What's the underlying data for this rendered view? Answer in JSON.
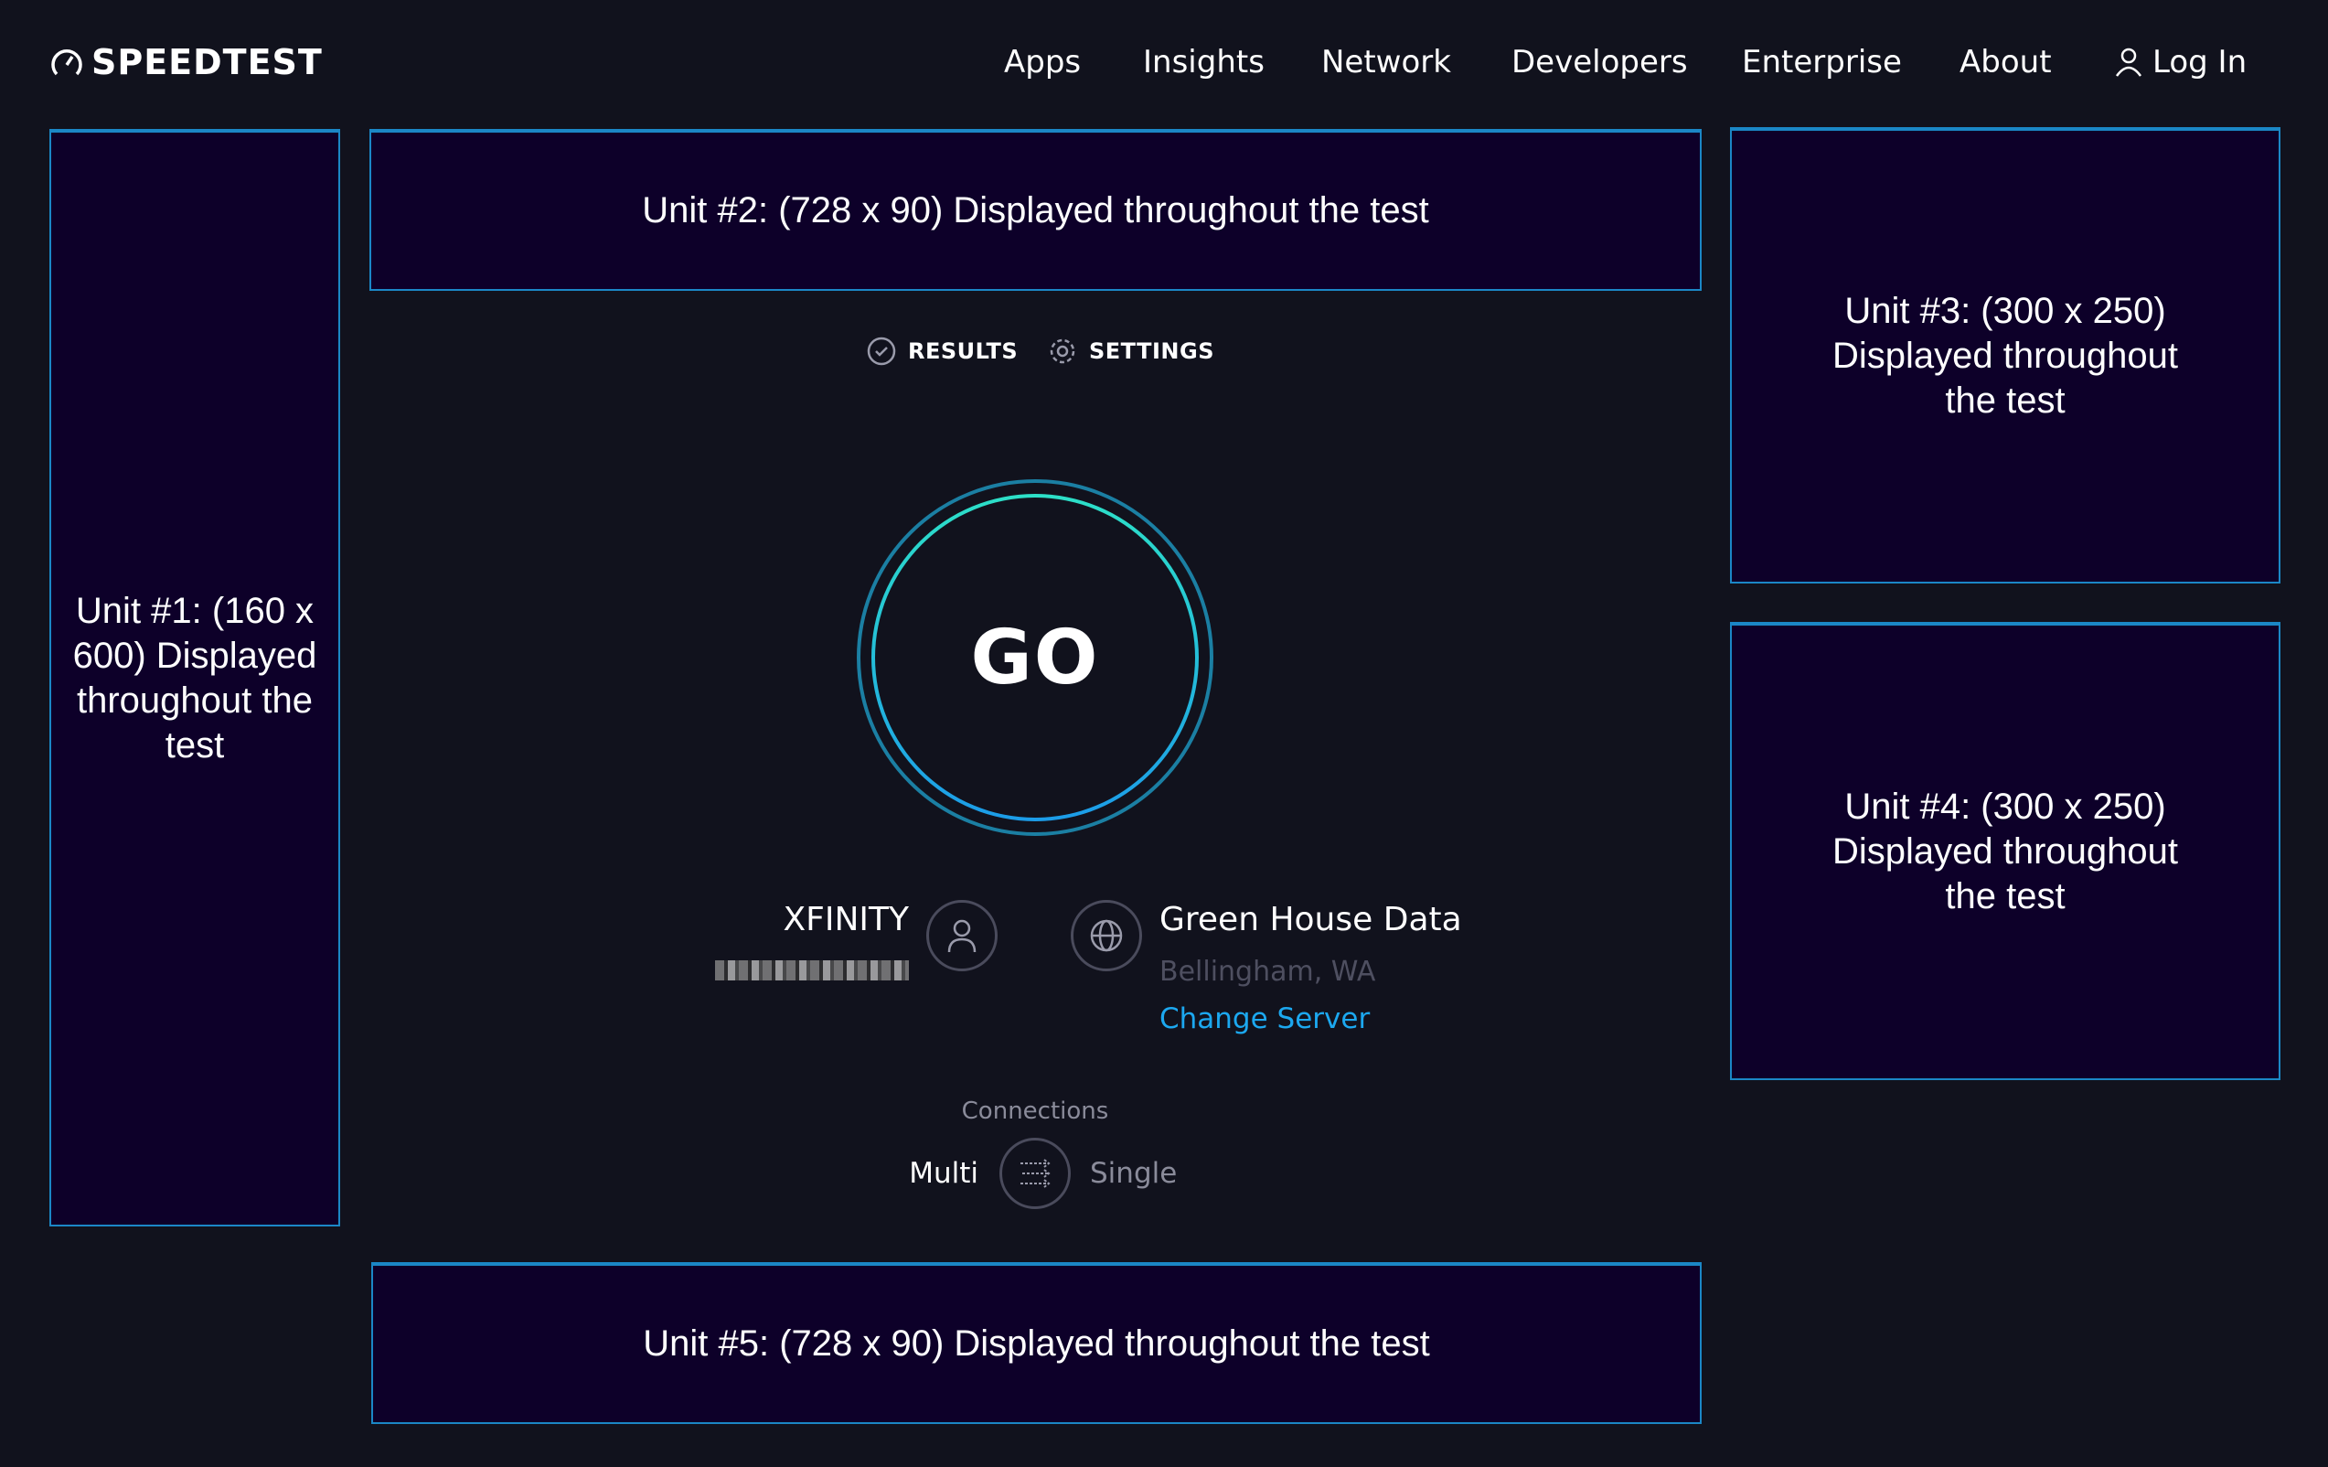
{
  "header": {
    "logo": "SPEEDTEST",
    "nav": [
      "Apps",
      "Insights",
      "Network",
      "Developers",
      "Enterprise",
      "About"
    ],
    "login": "Log In"
  },
  "ads": {
    "unit1": "Unit #1: (160 x 600) Displayed throughout the test",
    "unit2": "Unit #2: (728 x 90) Displayed throughout the test",
    "unit3": "Unit #3: (300 x 250) Displayed throughout the test",
    "unit4": "Unit #4: (300 x 250) Displayed throughout the test",
    "unit5": "Unit #5: (728 x 90) Displayed throughout the test"
  },
  "tabs": {
    "results": "RESULTS",
    "settings": "SETTINGS"
  },
  "go": "GO",
  "isp": {
    "name": "XFINITY"
  },
  "server": {
    "name": "Green House Data",
    "location": "Bellingham, WA",
    "change": "Change Server"
  },
  "connections": {
    "label": "Connections",
    "multi": "Multi",
    "single": "Single",
    "selected": "Multi"
  },
  "colors": {
    "background": "#11121d",
    "accent": "#1ca8f0",
    "ad_border": "#1b87c6",
    "ad_fill": "#0d0029"
  }
}
